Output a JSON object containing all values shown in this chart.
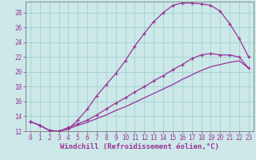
{
  "xlabel": "Windchill (Refroidissement éolien,°C)",
  "bg_color": "#cce8e8",
  "grid_color": "#99cccc",
  "line_color": "#993399",
  "xlim": [
    -0.5,
    23.5
  ],
  "ylim": [
    12,
    29.5
  ],
  "xticks": [
    0,
    1,
    2,
    3,
    4,
    5,
    6,
    7,
    8,
    9,
    10,
    11,
    12,
    13,
    14,
    15,
    16,
    17,
    18,
    19,
    20,
    21,
    22,
    23
  ],
  "yticks": [
    12,
    14,
    16,
    18,
    20,
    22,
    24,
    26,
    28
  ],
  "line1_x": [
    0,
    1,
    2,
    3,
    4,
    5,
    6,
    7,
    8,
    9,
    10,
    11,
    12,
    13,
    14,
    15,
    16,
    17,
    18,
    19,
    20,
    21,
    22,
    23
  ],
  "line1_y": [
    13.3,
    12.8,
    12.1,
    12.0,
    12.3,
    13.5,
    15.0,
    16.8,
    18.3,
    19.8,
    21.5,
    23.5,
    25.2,
    26.8,
    28.0,
    29.0,
    29.3,
    29.3,
    29.2,
    29.0,
    28.2,
    26.5,
    24.5,
    22.0
  ],
  "line2_x": [
    0,
    1,
    2,
    3,
    4,
    5,
    6,
    7,
    8,
    9,
    10,
    11,
    12,
    13,
    14,
    15,
    16,
    17,
    18,
    19,
    20,
    21,
    22,
    23
  ],
  "line2_y": [
    13.3,
    12.8,
    12.1,
    12.0,
    12.5,
    13.0,
    13.5,
    14.2,
    15.0,
    15.8,
    16.5,
    17.3,
    18.0,
    18.8,
    19.5,
    20.3,
    21.0,
    21.8,
    22.3,
    22.5,
    22.3,
    22.3,
    22.0,
    20.5
  ],
  "line3_x": [
    0,
    1,
    2,
    3,
    4,
    5,
    6,
    7,
    8,
    9,
    10,
    11,
    12,
    13,
    14,
    15,
    16,
    17,
    18,
    19,
    20,
    21,
    22,
    23
  ],
  "line3_y": [
    13.3,
    12.8,
    12.1,
    12.0,
    12.3,
    12.8,
    13.2,
    13.7,
    14.2,
    14.8,
    15.3,
    15.9,
    16.5,
    17.1,
    17.7,
    18.3,
    19.0,
    19.6,
    20.2,
    20.7,
    21.0,
    21.3,
    21.5,
    20.5
  ],
  "axis_fontsize": 6.5,
  "tick_fontsize": 5.5,
  "spine_color": "#666666"
}
